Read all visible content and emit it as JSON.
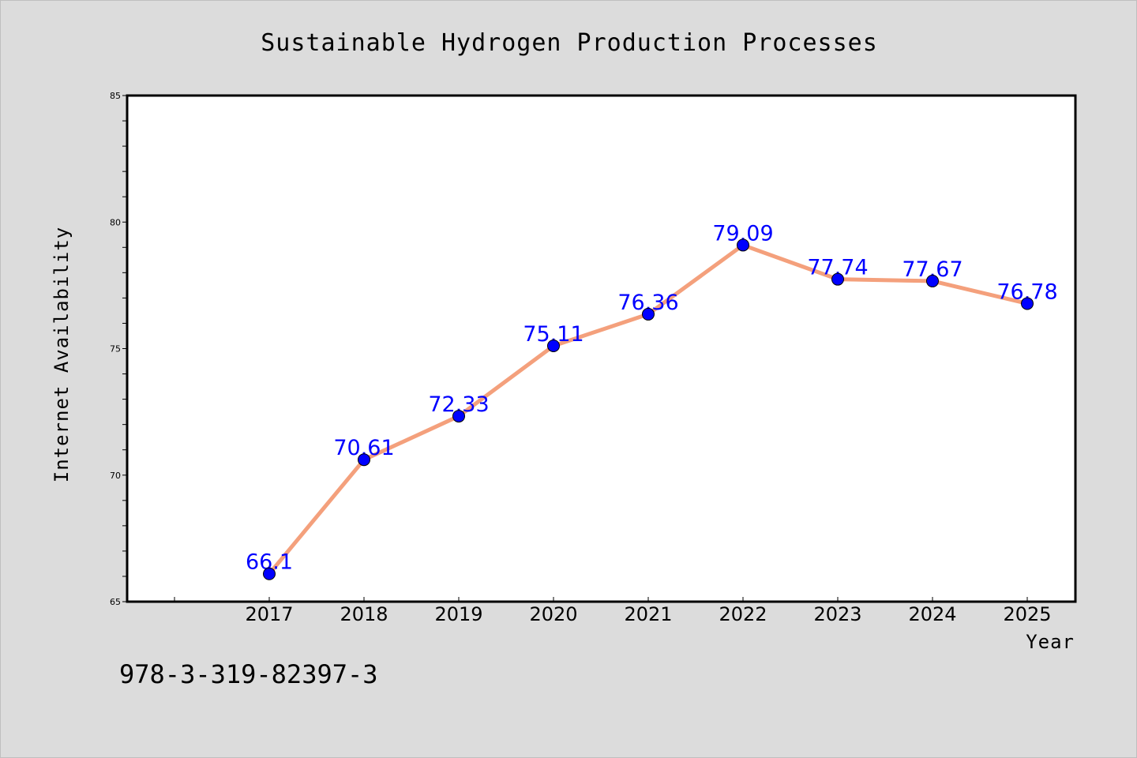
{
  "chart_data": {
    "type": "line",
    "title": "Sustainable Hydrogen Production Processes",
    "xlabel": "Year",
    "ylabel": "Internet Availability",
    "x": [
      "2017",
      "2018",
      "2019",
      "2020",
      "2021",
      "2022",
      "2023",
      "2024",
      "2025"
    ],
    "series": [
      {
        "values": [
          66.1,
          70.61,
          72.33,
          75.11,
          76.36,
          79.09,
          77.74,
          77.67,
          76.78
        ],
        "labels": [
          "66.1",
          "70.61",
          "72.33",
          "75.11",
          "76.36",
          "79.09",
          "77.74",
          "77.67",
          "76.78"
        ],
        "line_color": "#f4a07c",
        "marker_color": "#0000ff"
      }
    ],
    "ylim": [
      65,
      85
    ],
    "yticks": [
      "65",
      "70",
      "75",
      "80",
      "85"
    ],
    "grid": false,
    "legend": "none"
  },
  "footnote": "978-3-319-82397-3"
}
